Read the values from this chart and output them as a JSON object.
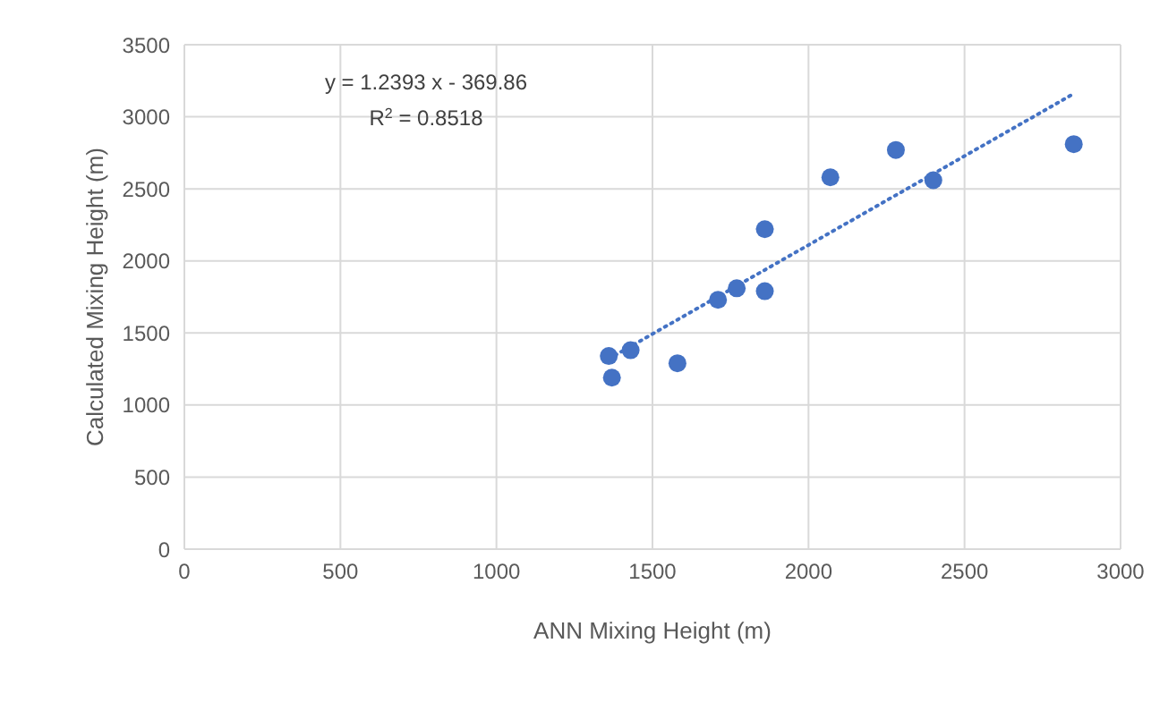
{
  "chart_data": {
    "type": "scatter",
    "xlabel": "ANN Mixing Height (m)",
    "ylabel": "Calculated Mixing Height (m)",
    "xlim": [
      0,
      3000
    ],
    "xticks": [
      0,
      500,
      1000,
      1500,
      2000,
      2500,
      3000
    ],
    "ylim": [
      0,
      3500
    ],
    "yticks": [
      0,
      500,
      1000,
      1500,
      2000,
      2500,
      3000,
      3500
    ],
    "grid": true,
    "marker": "circle",
    "annotations": [
      "y = 1.2393 x - 369.86",
      "R$^{2}$ = 0.8518"
    ],
    "series": [
      {
        "color": "#4472c4",
        "x": [
          1360,
          1370,
          1430,
          1580,
          1710,
          1770,
          1860,
          1860,
          2070,
          2280,
          2400,
          2850
        ],
        "values": [
          1340,
          1190,
          1380,
          1290,
          1730,
          1810,
          2220,
          1790,
          2580,
          2770,
          2560,
          2810
        ]
      },
      {
        "type": "line",
        "color": "#4472c4",
        "line_style": "dotted",
        "marker": "none",
        "x": [
          1360,
          2850
        ],
        "values": [
          1320,
          3160
        ]
      }
    ]
  }
}
